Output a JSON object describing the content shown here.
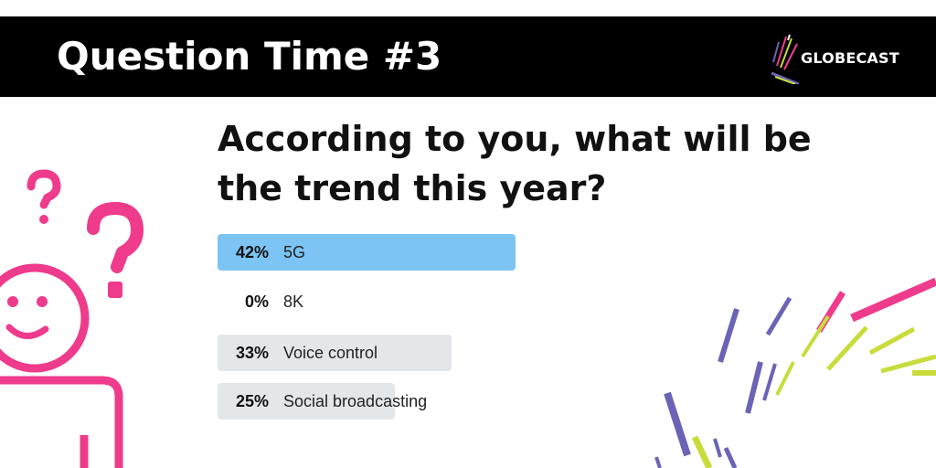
{
  "header": {
    "title": "Question Time #3",
    "logo_text": "GLOBECAST"
  },
  "question": {
    "line1": "According to you, what will be",
    "line2": "the trend this year?"
  },
  "poll": {
    "options": [
      {
        "percent": "42%",
        "value": 42,
        "label": "5G",
        "winner": true
      },
      {
        "percent": "0%",
        "value": 0,
        "label": "8K",
        "winner": false
      },
      {
        "percent": "33%",
        "value": 33,
        "label": "Voice control",
        "winner": false
      },
      {
        "percent": "25%",
        "value": 25,
        "label": "Social broadcasting",
        "winner": false
      }
    ]
  },
  "colors": {
    "banner": "#000000",
    "winner_bar": "#7cc4f3",
    "other_bar": "#e3e7ea",
    "accent_pink": "#ef3b8c",
    "accent_purple": "#6b63b5",
    "accent_lime": "#c8dc3c"
  },
  "icons": {
    "figure": "confused-person-icon",
    "burst": "decorative-line-burst",
    "logo": "globecast-logo"
  }
}
